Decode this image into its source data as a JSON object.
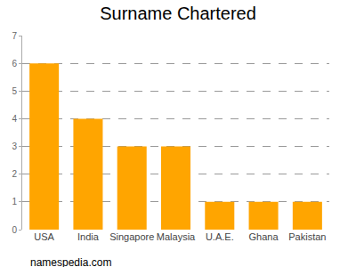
{
  "chart_data": {
    "type": "bar",
    "title": "Surname Chartered",
    "categories": [
      "USA",
      "India",
      "Singapore",
      "Malaysia",
      "U.A.E.",
      "Ghana",
      "Pakistan"
    ],
    "values": [
      6,
      4,
      3,
      3,
      1,
      1,
      1
    ],
    "color": "#ffa500",
    "ylim": [
      0,
      7
    ],
    "yticks": [
      0,
      1,
      2,
      3,
      4,
      5,
      6,
      7
    ],
    "grid": true,
    "annotation": "namespedia.com"
  }
}
